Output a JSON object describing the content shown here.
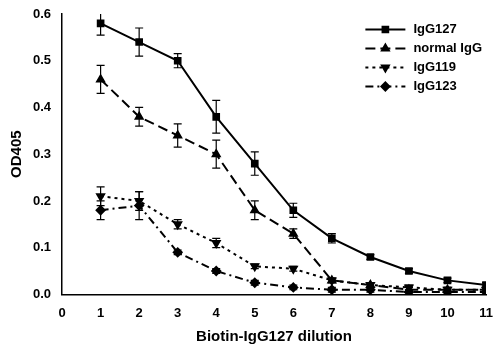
{
  "chart_data": {
    "type": "line",
    "x_label": "Biotin-IgG127 dilution",
    "y_label": "OD405",
    "x": [
      1,
      2,
      3,
      4,
      5,
      6,
      7,
      8,
      9,
      10,
      11
    ],
    "xlim": [
      0,
      11
    ],
    "xticks": [
      0,
      1,
      2,
      3,
      4,
      5,
      6,
      7,
      8,
      9,
      10,
      11
    ],
    "ylim": [
      0,
      0.6
    ],
    "yticks": [
      {
        "value": 0,
        "label": "0.0"
      },
      0.1,
      0.2,
      0.3,
      0.4,
      0.5,
      0.6
    ],
    "grid": false,
    "legend": "upper right",
    "series": [
      {
        "name": "IgG127",
        "color": "#000000",
        "marker": "square",
        "line_style": "solid",
        "values": [
          0.58,
          0.54,
          0.5,
          0.38,
          0.28,
          0.18,
          0.12,
          0.08,
          0.05,
          0.03,
          0.02
        ],
        "errors": [
          0.025,
          0.03,
          0.015,
          0.035,
          0.025,
          0.015,
          0.01,
          0.005,
          0.005,
          0.005,
          0.005
        ]
      },
      {
        "name": "normal IgG",
        "color": "#000000",
        "marker": "triangle",
        "line_style": "dashed",
        "values": [
          0.46,
          0.38,
          0.34,
          0.3,
          0.18,
          0.13,
          0.03,
          0.02,
          0.01,
          0.01,
          0.01
        ],
        "errors": [
          0.03,
          0.02,
          0.025,
          0.03,
          0.02,
          0.01,
          0.005,
          0.005,
          0.005,
          0.005,
          0.005
        ]
      },
      {
        "name": "IgG119",
        "color": "#000000",
        "marker": "triangle_down",
        "line_style": "dotted",
        "values": [
          0.21,
          0.2,
          0.15,
          0.11,
          0.06,
          0.055,
          0.03,
          0.02,
          0.015,
          0.01,
          0.01
        ],
        "errors": [
          0.02,
          0.02,
          0.01,
          0.01,
          0.005,
          0.005,
          0.005,
          0.005,
          0.005,
          0.005,
          0.005
        ]
      },
      {
        "name": "IgG123",
        "color": "#000000",
        "marker": "diamond",
        "line_style": "dashdot",
        "values": [
          0.18,
          0.19,
          0.09,
          0.05,
          0.025,
          0.015,
          0.01,
          0.01,
          0.005,
          0.005,
          0.005
        ],
        "errors": [
          0.02,
          0.03,
          0.005,
          0.005,
          0.005,
          0.005,
          0.005,
          0.005,
          0.005,
          0.005,
          0.005
        ]
      }
    ]
  }
}
